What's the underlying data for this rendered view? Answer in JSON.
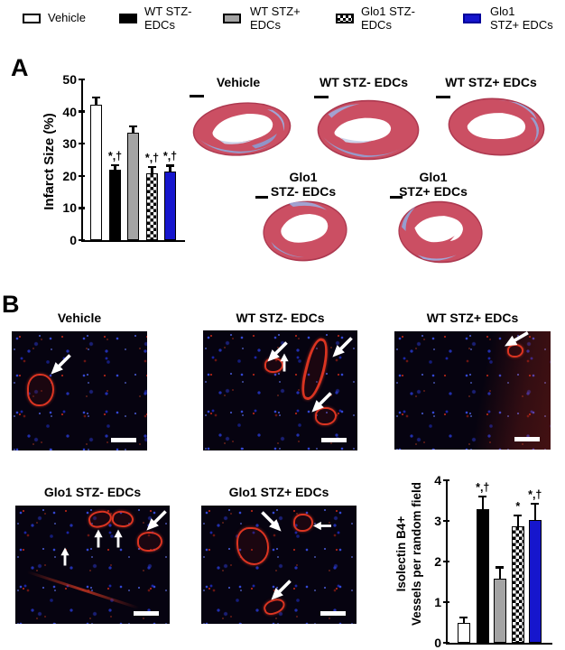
{
  "figure": {
    "panel_a_label": "A",
    "panel_b_label": "B"
  },
  "legend": {
    "items": [
      {
        "label": "Vehicle",
        "swatch": "white-box"
      },
      {
        "label": "WT STZ-\nEDCs",
        "swatch": "black-box"
      },
      {
        "label": "WT STZ+\nEDCs",
        "swatch": "gray-box"
      },
      {
        "label": "Glo1 STZ-\nEDCs",
        "swatch": "checkered-box"
      },
      {
        "label": "Glo1\nSTZ+ EDCs",
        "swatch": "blue-box"
      }
    ]
  },
  "colors": {
    "blue": "#1616cd",
    "gray": "#a4a4a4",
    "black": "#000000",
    "white": "#ffffff",
    "heart_red": "#cb4f63",
    "heart_fibrosis_blue": "#92a2d5",
    "vessel_red": "#e63723",
    "nuclei_blue": "#2637c8"
  },
  "panel_a": {
    "hearts": [
      {
        "label": "Vehicle"
      },
      {
        "label": "WT STZ- EDCs"
      },
      {
        "label": "WT STZ+ EDCs"
      },
      {
        "label": "Glo1\nSTZ- EDCs"
      },
      {
        "label": "Glo1\nSTZ+ EDCs"
      }
    ]
  },
  "panel_b": {
    "images": [
      {
        "label": "Vehicle",
        "arrow_count": 1
      },
      {
        "label": "WT STZ- EDCs",
        "arrow_count": 4
      },
      {
        "label": "WT STZ+ EDCs",
        "arrow_count": 1
      },
      {
        "label": "Glo1 STZ- EDCs",
        "arrow_count": 4
      },
      {
        "label": "Glo1 STZ+ EDCs",
        "arrow_count": 3
      }
    ]
  },
  "chart_data": [
    {
      "type": "bar",
      "panel": "A",
      "title": "",
      "xlabel": "",
      "ylabel": "Infarct Size (%)",
      "categories": [
        "Vehicle",
        "WT STZ- EDCs",
        "WT STZ+ EDCs",
        "Glo1 STZ- EDCs",
        "Glo1 STZ+ EDCs"
      ],
      "values": [
        42,
        22,
        33.5,
        20.8,
        21.4
      ],
      "errors": [
        2.8,
        1.7,
        2.2,
        2.3,
        2.1
      ],
      "annotations": [
        "",
        "*,†",
        "",
        "*,†",
        "*,†"
      ],
      "bar_styles": [
        "white",
        "black",
        "gray",
        "checker",
        "blue"
      ],
      "ylim": [
        0,
        50
      ],
      "yticks": [
        0,
        10,
        20,
        30,
        40,
        50
      ],
      "grid": false,
      "legend_position": "figure-top"
    },
    {
      "type": "bar",
      "panel": "B",
      "title": "",
      "xlabel": "",
      "ylabel": "Isolectin B4+\nVessels per random field",
      "categories": [
        "Vehicle",
        "WT STZ- EDCs",
        "WT STZ+ EDCs",
        "Glo1 STZ- EDCs",
        "Glo1 STZ+ EDCs"
      ],
      "values": [
        0.5,
        3.3,
        1.57,
        2.87,
        3.02
      ],
      "errors": [
        0.15,
        0.33,
        0.31,
        0.28,
        0.42
      ],
      "annotations": [
        "",
        "*,†",
        "",
        "*",
        "*,†"
      ],
      "bar_styles": [
        "white",
        "black",
        "gray",
        "checker",
        "blue"
      ],
      "ylim": [
        0,
        4
      ],
      "yticks": [
        0,
        1,
        2,
        3,
        4
      ],
      "grid": false,
      "legend_position": "figure-top"
    }
  ]
}
